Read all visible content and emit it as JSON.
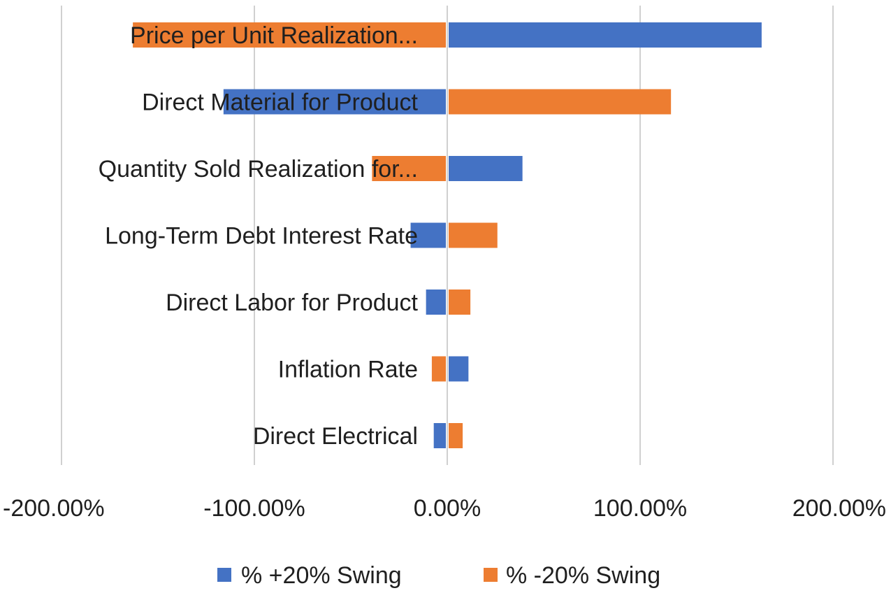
{
  "chart_data": {
    "type": "bar",
    "orientation": "horizontal",
    "categories": [
      "Price per Unit Realization...",
      "Direct Material for Product",
      "Quantity Sold Realization for...",
      "Long-Term Debt Interest Rate",
      "Direct Labor for Product",
      "Inflation Rate",
      "Direct Electrical"
    ],
    "series": [
      {
        "name": "% +20% Swing",
        "color": "#4472C4",
        "values": [
          163,
          -116,
          39,
          -19,
          -11,
          11,
          -7
        ]
      },
      {
        "name": "% -20% Swing",
        "color": "#ED7D31",
        "values": [
          -163,
          116,
          -39,
          26,
          12,
          -8,
          8
        ]
      }
    ],
    "xlim": [
      -200,
      200
    ],
    "xticks": [
      -200,
      -100,
      0,
      100,
      200
    ],
    "xtick_labels": [
      "-200.00%",
      "-100.00%",
      "0.00%",
      "100.00%",
      "200.00%"
    ],
    "grid": true,
    "legend_position": "bottom"
  }
}
